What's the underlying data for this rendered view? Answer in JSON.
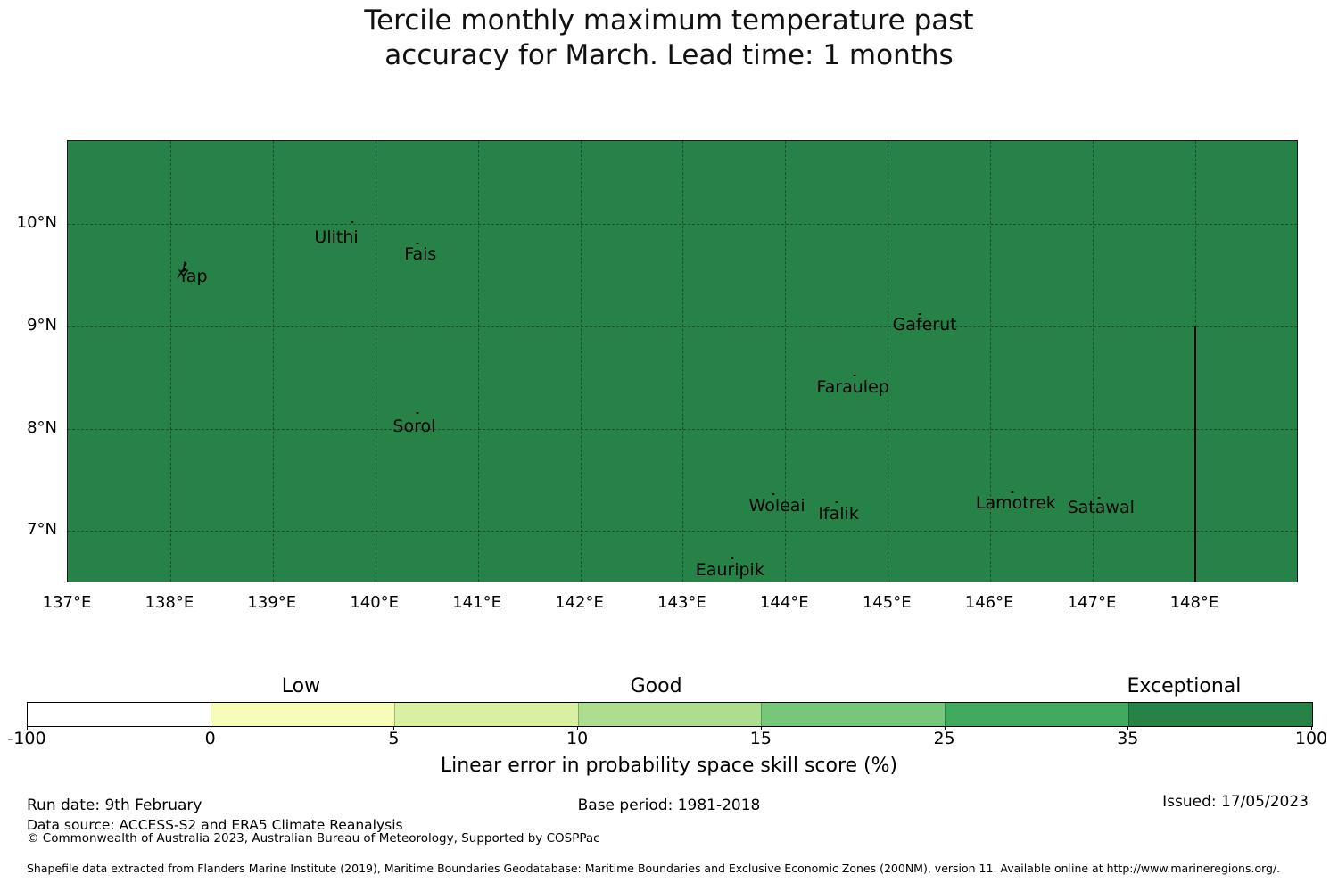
{
  "title": {
    "line1": "Tercile monthly maximum temperature past",
    "line2": "accuracy for March. Lead time: 1 months"
  },
  "map": {
    "fill_color": "#268247",
    "border_color": "#1a1a1a",
    "extent": {
      "lon_min": 137.0,
      "lon_max": 149.01,
      "lat_min": 6.49,
      "lat_max": 10.81
    },
    "gridline_lons": [
      138,
      139,
      140,
      141,
      142,
      143,
      144,
      145,
      146,
      147,
      148
    ],
    "gridline_lats": [
      7,
      8,
      9,
      10
    ],
    "x_ticks": [
      {
        "lon": 137,
        "label": "137°E"
      },
      {
        "lon": 138,
        "label": "138°E"
      },
      {
        "lon": 139,
        "label": "139°E"
      },
      {
        "lon": 140,
        "label": "140°E"
      },
      {
        "lon": 141,
        "label": "141°E"
      },
      {
        "lon": 142,
        "label": "142°E"
      },
      {
        "lon": 143,
        "label": "143°E"
      },
      {
        "lon": 144,
        "label": "144°E"
      },
      {
        "lon": 145,
        "label": "145°E"
      },
      {
        "lon": 146,
        "label": "146°E"
      },
      {
        "lon": 147,
        "label": "147°E"
      },
      {
        "lon": 148,
        "label": "148°E"
      }
    ],
    "y_ticks": [
      {
        "lat": 10,
        "label": "10°N"
      },
      {
        "lat": 9,
        "label": "9°N"
      },
      {
        "lat": 8,
        "label": "8°N"
      },
      {
        "lat": 7,
        "label": "7°N"
      }
    ],
    "eez_boundary": {
      "lon": 148.0,
      "lat_from": 9.0,
      "lat_to": 6.49
    },
    "places": [
      {
        "name": "Yap",
        "label_lon": 138.22,
        "label_lat": 9.49,
        "island_lon": 138.13,
        "island_lat": 9.55,
        "type": "island-outline"
      },
      {
        "name": "Ulithi",
        "label_lon": 139.62,
        "label_lat": 9.87,
        "marker_lon": 139.78,
        "marker_lat": 10.02
      },
      {
        "name": "Fais",
        "label_lon": 140.44,
        "label_lat": 9.7,
        "marker_lon": 140.41,
        "marker_lat": 9.81
      },
      {
        "name": "Sorol",
        "label_lon": 140.38,
        "label_lat": 8.02,
        "marker_lon": 140.41,
        "marker_lat": 8.15
      },
      {
        "name": "Gaferut",
        "label_lon": 145.36,
        "label_lat": 9.02,
        "marker_lon": 145.31,
        "marker_lat": 9.12
      },
      {
        "name": "Faraulep",
        "label_lon": 144.66,
        "label_lat": 8.41,
        "marker_lon": 144.68,
        "marker_lat": 8.52
      },
      {
        "name": "Woleai",
        "label_lon": 143.92,
        "label_lat": 7.25,
        "marker_lon": 143.88,
        "marker_lat": 7.36
      },
      {
        "name": "Ifalik",
        "label_lon": 144.52,
        "label_lat": 7.17,
        "marker_lon": 144.5,
        "marker_lat": 7.28
      },
      {
        "name": "Lamotrek",
        "label_lon": 146.25,
        "label_lat": 7.27,
        "marker_lon": 146.22,
        "marker_lat": 7.38
      },
      {
        "name": "Satawal",
        "label_lon": 147.08,
        "label_lat": 7.23,
        "marker_lon": 147.06,
        "marker_lat": 7.33
      },
      {
        "name": "Eauripik",
        "label_lon": 143.46,
        "label_lat": 6.62,
        "marker_lon": 143.48,
        "marker_lat": 6.73
      }
    ]
  },
  "colorbar": {
    "segments": [
      {
        "color": "#ffffff",
        "from": "-100",
        "to": "0"
      },
      {
        "color": "#f7fcb9",
        "from": "0",
        "to": "5"
      },
      {
        "color": "#d9f0a3",
        "from": "5",
        "to": "10"
      },
      {
        "color": "#addd8e",
        "from": "10",
        "to": "15"
      },
      {
        "color": "#78c679",
        "from": "15",
        "to": "25"
      },
      {
        "color": "#41ab5d",
        "from": "25",
        "to": "35"
      },
      {
        "color": "#268245",
        "from": "35",
        "to": "100"
      }
    ],
    "tick_labels": [
      "-100",
      "0",
      "5",
      "10",
      "15",
      "25",
      "35",
      "100"
    ],
    "category_labels": [
      "Low",
      "Good",
      "Exceptional"
    ],
    "axis_label": "Linear error in probability space skill score (%)"
  },
  "footer": {
    "run_date": "Run date: 9th February",
    "base_period": "Base period: 1981-2018",
    "issued": "Issued: 17/05/2023",
    "data_source": "Data source: ACCESS-S2 and ERA5 Climate Reanalysis",
    "copyright": "© Commonwealth of Australia 2023, Australian Bureau of Meteorology, Supported by COSPPac",
    "shapefile_note": "Shapefile data extracted from Flanders Marine Institute (2019), Maritime Boundaries Geodatabase: Maritime Boundaries and Exclusive Economic Zones (200NM), version 11. Available online at http://www.marineregions.org/."
  }
}
